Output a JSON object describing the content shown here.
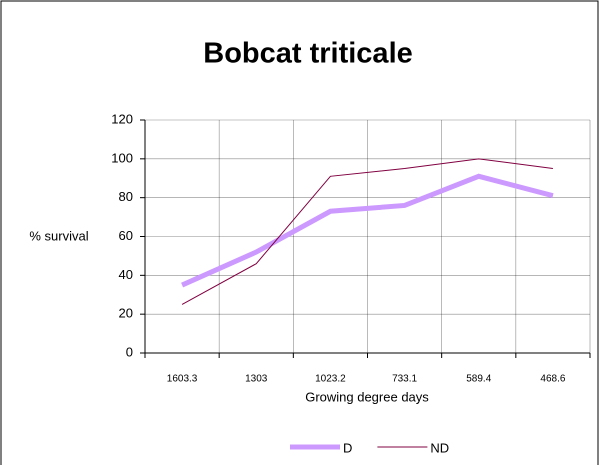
{
  "chart_data": {
    "type": "line",
    "title": "Bobcat triticale",
    "x_label": "Growing degree days",
    "y_label": "% survival",
    "categories": [
      "1603.3",
      "1303",
      "1023.2",
      "733.1",
      "589.4",
      "468.6"
    ],
    "series": [
      {
        "name": "D",
        "color": "#cc99ff",
        "values": [
          35,
          52,
          73,
          76,
          91,
          81
        ]
      },
      {
        "name": "ND",
        "color": "#800040",
        "values": [
          25,
          46,
          91,
          95,
          100,
          95
        ]
      }
    ],
    "ylim": [
      0,
      120
    ],
    "yticks": [
      0,
      20,
      40,
      60,
      80,
      100,
      120
    ],
    "grid": true,
    "legend": "bottom"
  }
}
